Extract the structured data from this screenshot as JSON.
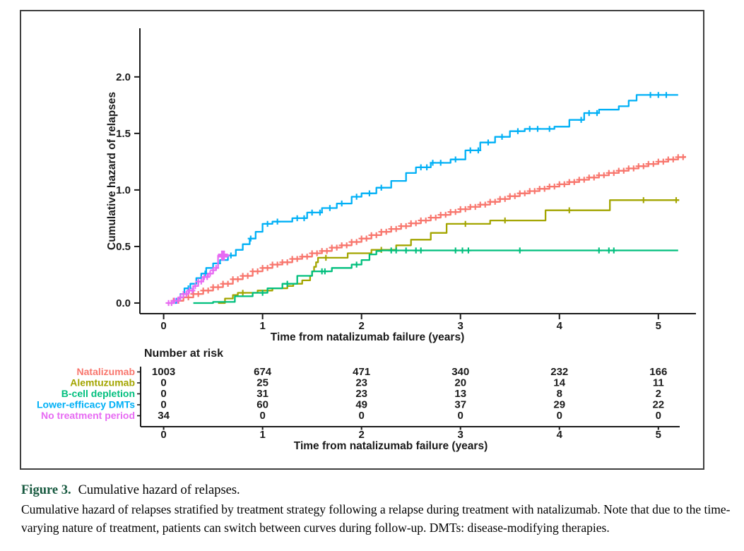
{
  "figure": {
    "caption_label": "Figure 3.",
    "caption_title": "Cumulative hazard of relapses.",
    "caption_body": "Cumulative hazard of relapses stratified by treatment strategy following a relapse during treatment with natalizumab. Note that due to the time-varying nature of treatment, patients can switch between curves during follow-up. DMTs: disease-modifying therapies.",
    "caption_label_color": "#17593f",
    "text_color": "#1a1a1a"
  },
  "chart_data": {
    "type": "line",
    "subtype": "step-cumulative-hazard",
    "title": "",
    "xlabel": "Time from natalizumab failure (years)",
    "ylabel": "Cumulative hazard of relapses",
    "xlim": [
      -0.24,
      5.38
    ],
    "ylim": [
      -0.094,
      2.43
    ],
    "xticks": [
      0,
      1,
      2,
      3,
      4,
      5
    ],
    "ytick_labels": [
      "0.0",
      "0.5",
      "1.0",
      "1.5",
      "2.0"
    ],
    "grid": false,
    "legend_position": "risk-table-left",
    "series": [
      {
        "name": "Natalizumab",
        "color": "#F8766D",
        "points": [
          [
            0.03,
            0
          ],
          [
            0.1,
            0.02
          ],
          [
            0.2,
            0.05
          ],
          [
            0.3,
            0.08
          ],
          [
            0.4,
            0.11
          ],
          [
            0.5,
            0.14
          ],
          [
            0.6,
            0.17
          ],
          [
            0.7,
            0.21
          ],
          [
            0.8,
            0.24
          ],
          [
            0.9,
            0.28
          ],
          [
            1.0,
            0.31
          ],
          [
            1.1,
            0.34
          ],
          [
            1.2,
            0.36
          ],
          [
            1.3,
            0.39
          ],
          [
            1.4,
            0.41
          ],
          [
            1.5,
            0.44
          ],
          [
            1.6,
            0.46
          ],
          [
            1.7,
            0.49
          ],
          [
            1.8,
            0.51
          ],
          [
            1.9,
            0.54
          ],
          [
            2.0,
            0.57
          ],
          [
            2.1,
            0.6
          ],
          [
            2.2,
            0.63
          ],
          [
            2.3,
            0.655
          ],
          [
            2.4,
            0.68
          ],
          [
            2.5,
            0.705
          ],
          [
            2.6,
            0.73
          ],
          [
            2.7,
            0.755
          ],
          [
            2.8,
            0.78
          ],
          [
            2.9,
            0.805
          ],
          [
            3.0,
            0.83
          ],
          [
            3.1,
            0.85
          ],
          [
            3.2,
            0.87
          ],
          [
            3.3,
            0.895
          ],
          [
            3.4,
            0.92
          ],
          [
            3.5,
            0.945
          ],
          [
            3.6,
            0.97
          ],
          [
            3.7,
            0.99
          ],
          [
            3.8,
            1.01
          ],
          [
            3.9,
            1.03
          ],
          [
            4.0,
            1.05
          ],
          [
            4.1,
            1.07
          ],
          [
            4.2,
            1.09
          ],
          [
            4.3,
            1.11
          ],
          [
            4.4,
            1.13
          ],
          [
            4.5,
            1.15
          ],
          [
            4.6,
            1.17
          ],
          [
            4.7,
            1.19
          ],
          [
            4.8,
            1.21
          ],
          [
            4.9,
            1.23
          ],
          [
            5.0,
            1.25
          ],
          [
            5.1,
            1.27
          ],
          [
            5.2,
            1.29
          ],
          [
            5.27,
            1.3
          ]
        ],
        "censor_times": [
          0.1,
          0.15,
          0.2,
          0.25,
          0.3,
          0.35,
          0.4,
          0.45,
          0.5,
          0.55,
          0.6,
          0.65,
          0.7,
          0.75,
          0.8,
          0.85,
          0.9,
          0.95,
          1.0,
          1.05,
          1.1,
          1.15,
          1.2,
          1.25,
          1.3,
          1.35,
          1.4,
          1.45,
          1.5,
          1.55,
          1.6,
          1.65,
          1.7,
          1.75,
          1.8,
          1.85,
          1.9,
          1.95,
          2.0,
          2.05,
          2.1,
          2.15,
          2.2,
          2.25,
          2.3,
          2.35,
          2.4,
          2.45,
          2.5,
          2.55,
          2.6,
          2.65,
          2.7,
          2.75,
          2.8,
          2.85,
          2.9,
          2.95,
          3.0,
          3.05,
          3.1,
          3.15,
          3.2,
          3.25,
          3.3,
          3.35,
          3.4,
          3.45,
          3.5,
          3.55,
          3.6,
          3.65,
          3.7,
          3.75,
          3.8,
          3.85,
          3.9,
          3.95,
          4.0,
          4.05,
          4.1,
          4.15,
          4.2,
          4.25,
          4.3,
          4.35,
          4.4,
          4.45,
          4.5,
          4.55,
          4.6,
          4.65,
          4.7,
          4.75,
          4.8,
          4.85,
          4.9,
          4.95,
          5.0,
          5.05,
          5.1,
          5.15,
          5.2,
          5.25
        ],
        "end_marker": false
      },
      {
        "name": "Alemtuzumab",
        "color": "#A3A500",
        "points": [
          [
            0.55,
            0
          ],
          [
            0.62,
            0.04
          ],
          [
            0.7,
            0.07
          ],
          [
            0.75,
            0.09
          ],
          [
            0.95,
            0.11
          ],
          [
            1.1,
            0.13
          ],
          [
            1.25,
            0.15
          ],
          [
            1.31,
            0.17
          ],
          [
            1.4,
            0.2
          ],
          [
            1.48,
            0.24
          ],
          [
            1.5,
            0.28
          ],
          [
            1.52,
            0.32
          ],
          [
            1.54,
            0.36
          ],
          [
            1.56,
            0.4
          ],
          [
            1.86,
            0.44
          ],
          [
            2.1,
            0.47
          ],
          [
            2.35,
            0.51
          ],
          [
            2.5,
            0.56
          ],
          [
            2.7,
            0.62
          ],
          [
            2.86,
            0.7
          ],
          [
            3.3,
            0.73
          ],
          [
            3.86,
            0.82
          ],
          [
            4.51,
            0.91
          ],
          [
            5.21,
            0.91
          ]
        ],
        "censor_times": [
          0.8,
          1.64,
          2.2,
          3.05,
          3.45,
          4.1,
          4.85,
          5.18
        ],
        "end_marker": false
      },
      {
        "name": "B-cell depletion",
        "color": "#00BF7D",
        "points": [
          [
            0.3,
            0
          ],
          [
            0.5,
            0.01
          ],
          [
            0.72,
            0.06
          ],
          [
            0.9,
            0.09
          ],
          [
            1.05,
            0.13
          ],
          [
            1.2,
            0.17
          ],
          [
            1.35,
            0.24
          ],
          [
            1.5,
            0.28
          ],
          [
            1.7,
            0.31
          ],
          [
            1.9,
            0.34
          ],
          [
            2.0,
            0.38
          ],
          [
            2.08,
            0.43
          ],
          [
            2.15,
            0.46
          ],
          [
            2.2,
            0.465
          ],
          [
            5.2,
            0.465
          ]
        ],
        "censor_times": [
          1.0,
          1.25,
          1.6,
          1.63,
          1.95,
          2.3,
          2.35,
          2.45,
          2.55,
          2.6,
          2.95,
          3.02,
          3.08,
          3.6,
          4.4,
          4.5,
          4.55
        ],
        "end_marker": false
      },
      {
        "name": "Lower-efficacy DMTs",
        "color": "#00B0F6",
        "points": [
          [
            0.08,
            0
          ],
          [
            0.13,
            0.04
          ],
          [
            0.17,
            0.08
          ],
          [
            0.21,
            0.13
          ],
          [
            0.27,
            0.17
          ],
          [
            0.33,
            0.22
          ],
          [
            0.38,
            0.26
          ],
          [
            0.43,
            0.31
          ],
          [
            0.5,
            0.35
          ],
          [
            0.57,
            0.38
          ],
          [
            0.65,
            0.42
          ],
          [
            0.73,
            0.47
          ],
          [
            0.8,
            0.52
          ],
          [
            0.87,
            0.57
          ],
          [
            0.93,
            0.63
          ],
          [
            1.0,
            0.7
          ],
          [
            1.1,
            0.72
          ],
          [
            1.3,
            0.75
          ],
          [
            1.45,
            0.8
          ],
          [
            1.6,
            0.84
          ],
          [
            1.75,
            0.88
          ],
          [
            1.9,
            0.94
          ],
          [
            2.0,
            0.97
          ],
          [
            2.15,
            1.02
          ],
          [
            2.3,
            1.08
          ],
          [
            2.45,
            1.15
          ],
          [
            2.55,
            1.2
          ],
          [
            2.7,
            1.24
          ],
          [
            2.9,
            1.27
          ],
          [
            3.05,
            1.35
          ],
          [
            3.2,
            1.42
          ],
          [
            3.35,
            1.47
          ],
          [
            3.5,
            1.52
          ],
          [
            3.65,
            1.54
          ],
          [
            3.95,
            1.56
          ],
          [
            4.1,
            1.62
          ],
          [
            4.25,
            1.68
          ],
          [
            4.4,
            1.71
          ],
          [
            4.6,
            1.74
          ],
          [
            4.7,
            1.79
          ],
          [
            4.78,
            1.84
          ],
          [
            5.2,
            1.84
          ]
        ],
        "censor_times": [
          0.25,
          0.42,
          0.55,
          0.68,
          0.88,
          1.05,
          1.15,
          1.35,
          1.42,
          1.5,
          1.58,
          1.68,
          1.8,
          1.95,
          2.08,
          2.2,
          2.6,
          2.66,
          2.72,
          2.8,
          2.95,
          3.1,
          3.18,
          3.28,
          3.42,
          3.58,
          3.7,
          3.78,
          3.9,
          4.22,
          4.3,
          4.38,
          4.92,
          5.0,
          5.08
        ],
        "end_marker": false
      },
      {
        "name": "No treatment period",
        "color": "#E76BF3",
        "points": [
          [
            0.04,
            0
          ],
          [
            0.1,
            0.02
          ],
          [
            0.15,
            0.05
          ],
          [
            0.2,
            0.08
          ],
          [
            0.25,
            0.11
          ],
          [
            0.3,
            0.15
          ],
          [
            0.35,
            0.19
          ],
          [
            0.4,
            0.23
          ],
          [
            0.45,
            0.26
          ],
          [
            0.5,
            0.29
          ],
          [
            0.53,
            0.31
          ],
          [
            0.55,
            0.42
          ],
          [
            0.66,
            0.43
          ]
        ],
        "censor_times": [
          0.05,
          0.08,
          0.11,
          0.14,
          0.17,
          0.2,
          0.23,
          0.26,
          0.29,
          0.32,
          0.35,
          0.38,
          0.41,
          0.44,
          0.47,
          0.5,
          0.53
        ],
        "end_marker": true,
        "end_marker_time": 0.6
      }
    ],
    "risk_table": {
      "title": "Number at risk",
      "xlabel": "Time from natalizumab failure (years)",
      "times": [
        0,
        1,
        2,
        3,
        4,
        5
      ],
      "rows": [
        {
          "name": "Natalizumab",
          "color": "#F8766D",
          "counts": [
            1003,
            674,
            471,
            340,
            232,
            166
          ]
        },
        {
          "name": "Alemtuzumab",
          "color": "#A3A500",
          "counts": [
            0,
            25,
            23,
            20,
            14,
            11
          ]
        },
        {
          "name": "B-cell depletion",
          "color": "#00BF7D",
          "counts": [
            0,
            31,
            23,
            13,
            8,
            2
          ]
        },
        {
          "name": "Lower-efficacy DMTs",
          "color": "#00B0F6",
          "counts": [
            0,
            60,
            49,
            37,
            29,
            22
          ]
        },
        {
          "name": "No treatment period",
          "color": "#E76BF3",
          "counts": [
            34,
            0,
            0,
            0,
            0,
            0
          ]
        }
      ]
    }
  }
}
